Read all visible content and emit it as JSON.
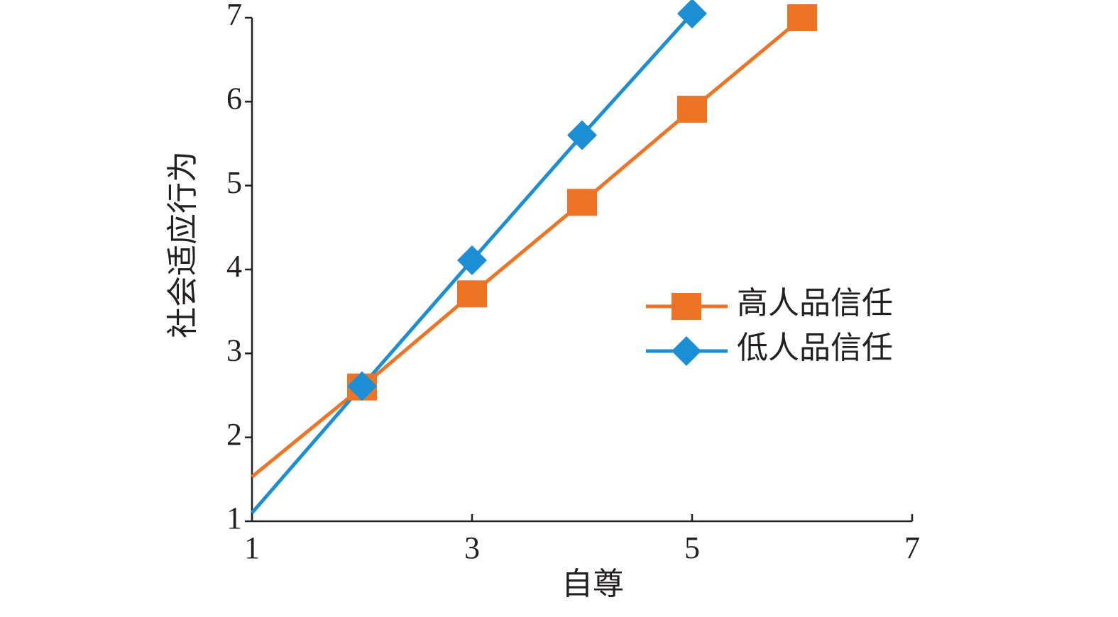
{
  "chart_data": {
    "type": "line",
    "x_label": "自尊",
    "y_label": "社会适应行为",
    "xlim": [
      1,
      7
    ],
    "xticks": [
      1,
      3,
      5,
      7
    ],
    "ylim": [
      1,
      7
    ],
    "yticks": [
      1,
      2,
      3,
      4,
      5,
      6,
      7
    ],
    "legend": "right",
    "series": [
      {
        "name": "高人品信任",
        "color": "#ec7424",
        "marker": "square",
        "x": [
          1,
          2,
          3,
          4,
          5,
          6
        ],
        "values": [
          1.53,
          2.6,
          3.71,
          4.8,
          5.91,
          7.0
        ]
      },
      {
        "name": "低人品信任",
        "color": "#1c8fd4",
        "marker": "diamond",
        "x": [
          1,
          2,
          3,
          4,
          5
        ],
        "values": [
          1.1,
          2.61,
          4.11,
          5.6,
          7.05
        ]
      }
    ]
  }
}
